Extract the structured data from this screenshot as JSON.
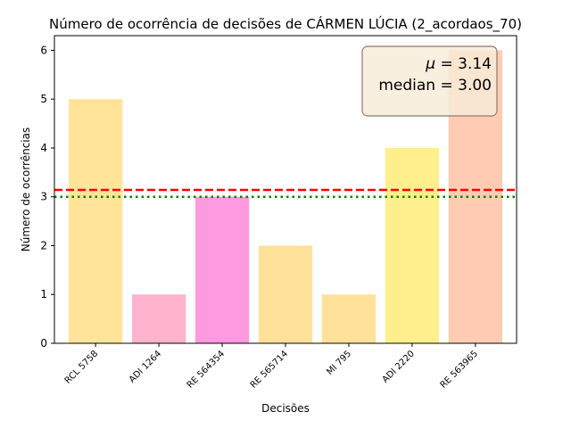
{
  "chart_data": {
    "type": "bar",
    "title": "Número de ocorrência de decisões de CÁRMEN LÚCIA (2_acordaos_70)",
    "xlabel": "Decisões",
    "ylabel": "Número de ocorrências",
    "categories": [
      "RCL 5758",
      "ADI 1264",
      "RE 564354",
      "RE 565714",
      "MI 795",
      "ADI 2220",
      "RE 563965"
    ],
    "values": [
      5,
      1,
      3,
      2,
      1,
      4,
      6
    ],
    "bar_colors": [
      "#ffe499",
      "#ffb3cc",
      "#ff99e0",
      "#ffe199",
      "#ffe199",
      "#ffee8c",
      "#ffccb3"
    ],
    "ylim": [
      0,
      6.3
    ],
    "yticks": [
      0,
      1,
      2,
      3,
      4,
      5,
      6
    ],
    "grid": false,
    "mean": 3.14,
    "median": 3.0,
    "mean_line": {
      "value": 3.14,
      "color": "#ff0000",
      "style": "dashed"
    },
    "median_line": {
      "value": 3.0,
      "color": "#008000",
      "style": "dotted"
    },
    "stats_box": {
      "mean_symbol": "μ",
      "mean_text": "3.14",
      "median_label": "median",
      "median_text": "3.00",
      "placement": "top-right",
      "facecolor": "#f8ebd8",
      "edgecolor": "#8c7b6b"
    }
  }
}
